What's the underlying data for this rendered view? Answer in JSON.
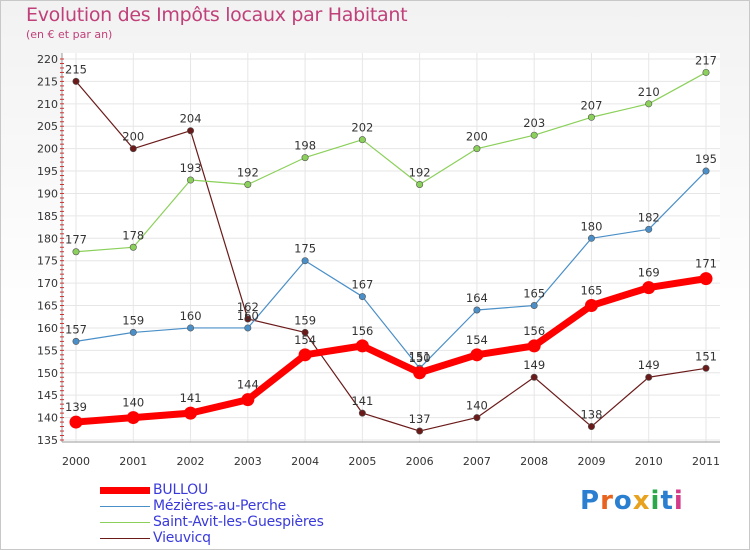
{
  "title": "Evolution des Impôts locaux par Habitant",
  "subtitle": "(en € et par an)",
  "brand": "Proxiti",
  "colors": {
    "BULLOU": "#ff0000",
    "Mezieres": "#4a8fc8",
    "SaintAvit": "#8bd05a",
    "Vieuvicq": "#6b1a1a",
    "title": "#c0407a",
    "legend_text": "#3a3adb"
  },
  "chart_data": {
    "type": "line",
    "title": "Evolution des Impôts locaux par Habitant",
    "subtitle": "(en € et par an)",
    "x": [
      "2000",
      "2001",
      "2002",
      "2003",
      "2004",
      "2005",
      "2006",
      "2007",
      "2008",
      "2009",
      "2010",
      "2011"
    ],
    "ylim": [
      135,
      220
    ],
    "yticks": [
      135,
      140,
      145,
      150,
      155,
      160,
      165,
      170,
      175,
      180,
      185,
      190,
      195,
      200,
      205,
      210,
      215,
      220
    ],
    "grid": true,
    "legend_position": "bottom-left",
    "series": [
      {
        "name": "BULLOU",
        "key": "BULLOU",
        "values": [
          139,
          140,
          141,
          144,
          154,
          156,
          150,
          154,
          156,
          165,
          169,
          171
        ]
      },
      {
        "name": "Mézières-au-Perche",
        "key": "Mezieres",
        "values": [
          157,
          159,
          160,
          160,
          175,
          167,
          151,
          164,
          165,
          180,
          182,
          195
        ]
      },
      {
        "name": "Saint-Avit-les-Guespières",
        "key": "SaintAvit",
        "values": [
          177,
          178,
          193,
          192,
          198,
          202,
          192,
          200,
          203,
          207,
          210,
          217
        ]
      },
      {
        "name": "Vieuvicq",
        "key": "Vieuvicq",
        "values": [
          215,
          200,
          204,
          162,
          159,
          141,
          137,
          140,
          149,
          138,
          149,
          151
        ]
      }
    ]
  }
}
